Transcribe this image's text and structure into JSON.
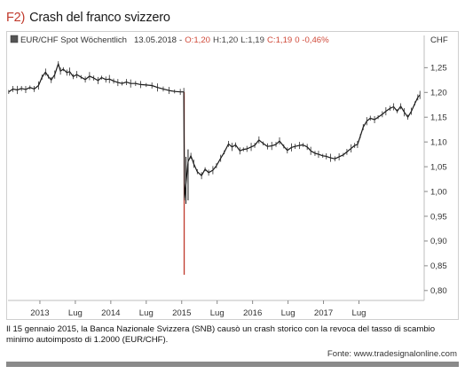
{
  "header": {
    "figure_tag": "F2)",
    "title": "Crash del franco svizzero"
  },
  "chart_data": {
    "type": "line",
    "instrument": "EUR/CHF Spot Wöchentlich",
    "date": "13.05.2018",
    "ohlc_label": "-",
    "stats": [
      {
        "text": "O:1,20",
        "color": "#d04a3a"
      },
      {
        "text": "H:1,20",
        "color": "#444444"
      },
      {
        "text": "L:1,19",
        "color": "#444444"
      },
      {
        "text": "C:1,19",
        "color": "#d04a3a"
      },
      {
        "text": "0 -0,46%",
        "color": "#d04a3a"
      }
    ],
    "yaxis_unit": "CHF",
    "ylim": [
      0.78,
      1.29
    ],
    "y_ticks": [
      "0,80",
      "0,85",
      "0,90",
      "0,95",
      "1,00",
      "1,05",
      "1,10",
      "1,15",
      "1,20",
      "1,25"
    ],
    "y_tick_values": [
      0.8,
      0.85,
      0.9,
      0.95,
      1.0,
      1.05,
      1.1,
      1.15,
      1.2,
      1.25
    ],
    "x_ticks": [
      "2013",
      "Lug",
      "2014",
      "Lug",
      "2015",
      "Lug",
      "2016",
      "Lug",
      "2017",
      "Lug"
    ],
    "x_tick_values": [
      2013.0,
      2013.5,
      2014.0,
      2014.5,
      2015.0,
      2015.5,
      2016.0,
      2016.5,
      2017.0,
      2017.5
    ],
    "xlim": [
      2012.55,
      2018.42
    ],
    "series": [
      {
        "values": [
          [
            2012.56,
            1.201
          ],
          [
            2012.62,
            1.207
          ],
          [
            2012.68,
            1.205
          ],
          [
            2012.74,
            1.208
          ],
          [
            2012.8,
            1.206
          ],
          [
            2012.86,
            1.21
          ],
          [
            2012.92,
            1.207
          ],
          [
            2012.98,
            1.214
          ],
          [
            2013.03,
            1.231
          ],
          [
            2013.08,
            1.241
          ],
          [
            2013.12,
            1.232
          ],
          [
            2013.16,
            1.225
          ],
          [
            2013.21,
            1.236
          ],
          [
            2013.26,
            1.258
          ],
          [
            2013.29,
            1.243
          ],
          [
            2013.33,
            1.247
          ],
          [
            2013.38,
            1.24
          ],
          [
            2013.42,
            1.242
          ],
          [
            2013.47,
            1.232
          ],
          [
            2013.52,
            1.236
          ],
          [
            2013.58,
            1.231
          ],
          [
            2013.64,
            1.226
          ],
          [
            2013.7,
            1.233
          ],
          [
            2013.76,
            1.229
          ],
          [
            2013.82,
            1.224
          ],
          [
            2013.87,
            1.23
          ],
          [
            2013.93,
            1.226
          ],
          [
            2013.98,
            1.227
          ],
          [
            2014.04,
            1.223
          ],
          [
            2014.1,
            1.22
          ],
          [
            2014.16,
            1.218
          ],
          [
            2014.22,
            1.221
          ],
          [
            2014.28,
            1.218
          ],
          [
            2014.35,
            1.218
          ],
          [
            2014.42,
            1.216
          ],
          [
            2014.5,
            1.215
          ],
          [
            2014.58,
            1.214
          ],
          [
            2014.66,
            1.21
          ],
          [
            2014.74,
            1.207
          ],
          [
            2014.82,
            1.204
          ],
          [
            2014.9,
            1.202
          ],
          [
            2014.98,
            1.201
          ],
          [
            2015.03,
            1.201
          ],
          [
            2015.04,
            0.987
          ],
          [
            2015.06,
            1.015
          ],
          [
            2015.09,
            1.06
          ],
          [
            2015.13,
            1.072
          ],
          [
            2015.17,
            1.056
          ],
          [
            2015.22,
            1.04
          ],
          [
            2015.28,
            1.032
          ],
          [
            2015.33,
            1.045
          ],
          [
            2015.38,
            1.038
          ],
          [
            2015.44,
            1.043
          ],
          [
            2015.49,
            1.052
          ],
          [
            2015.55,
            1.067
          ],
          [
            2015.6,
            1.079
          ],
          [
            2015.66,
            1.096
          ],
          [
            2015.71,
            1.09
          ],
          [
            2015.76,
            1.094
          ],
          [
            2015.82,
            1.082
          ],
          [
            2015.87,
            1.085
          ],
          [
            2015.92,
            1.086
          ],
          [
            2015.98,
            1.09
          ],
          [
            2016.03,
            1.093
          ],
          [
            2016.09,
            1.104
          ],
          [
            2016.15,
            1.097
          ],
          [
            2016.21,
            1.091
          ],
          [
            2016.27,
            1.092
          ],
          [
            2016.33,
            1.095
          ],
          [
            2016.38,
            1.102
          ],
          [
            2016.44,
            1.091
          ],
          [
            2016.49,
            1.083
          ],
          [
            2016.55,
            1.089
          ],
          [
            2016.6,
            1.091
          ],
          [
            2016.66,
            1.093
          ],
          [
            2016.71,
            1.094
          ],
          [
            2016.77,
            1.09
          ],
          [
            2016.82,
            1.082
          ],
          [
            2016.88,
            1.077
          ],
          [
            2016.93,
            1.075
          ],
          [
            2016.99,
            1.072
          ],
          [
            2017.04,
            1.071
          ],
          [
            2017.1,
            1.068
          ],
          [
            2017.16,
            1.066
          ],
          [
            2017.22,
            1.07
          ],
          [
            2017.28,
            1.074
          ],
          [
            2017.33,
            1.08
          ],
          [
            2017.39,
            1.087
          ],
          [
            2017.44,
            1.093
          ],
          [
            2017.48,
            1.095
          ],
          [
            2017.52,
            1.112
          ],
          [
            2017.56,
            1.13
          ],
          [
            2017.61,
            1.142
          ],
          [
            2017.66,
            1.148
          ],
          [
            2017.72,
            1.145
          ],
          [
            2017.77,
            1.15
          ],
          [
            2017.83,
            1.156
          ],
          [
            2017.88,
            1.162
          ],
          [
            2017.94,
            1.168
          ],
          [
            2017.99,
            1.171
          ],
          [
            2018.04,
            1.162
          ],
          [
            2018.09,
            1.172
          ],
          [
            2018.14,
            1.16
          ],
          [
            2018.19,
            1.15
          ],
          [
            2018.24,
            1.162
          ],
          [
            2018.29,
            1.178
          ],
          [
            2018.33,
            1.19
          ],
          [
            2018.36,
            1.195
          ]
        ]
      }
    ],
    "crash_low": 0.832,
    "crash_ranges": [
      [
        2015.035,
        0.832,
        1.201
      ],
      [
        2015.06,
        0.975,
        1.07
      ],
      [
        2015.09,
        0.982,
        1.085
      ]
    ],
    "highlight_color": "#c0392b",
    "line_color": "#1a1a1a"
  },
  "caption": "Il 15 gennaio 2015, la Banca Nazionale Svizzera (SNB) causò un crash storico con la revoca del tasso di scambio minimo autoimposto di 1.2000 (EUR/CHF).",
  "source": "Fonte: www.tradesignalonline.com"
}
